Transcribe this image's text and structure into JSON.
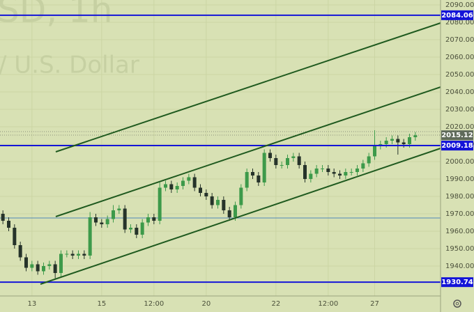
{
  "chart_data": {
    "type": "candlestick",
    "watermark": [
      "SD, 1h",
      "/ U.S. Dollar"
    ],
    "categories": [
      null,
      null,
      null,
      null,
      null,
      "13",
      null,
      null,
      null,
      null,
      null,
      null,
      null,
      null,
      null,
      null,
      null,
      "15",
      null,
      null,
      null,
      null,
      null,
      null,
      null,
      null,
      "12:00",
      null,
      null,
      null,
      null,
      null,
      null,
      null,
      null,
      "20",
      null,
      null,
      null,
      null,
      null,
      null,
      null,
      null,
      null,
      null,
      null,
      "22",
      null,
      null,
      null,
      null,
      null,
      null,
      null,
      null,
      "12:00",
      null,
      null,
      null,
      null,
      null,
      null,
      null,
      "27",
      null,
      null,
      null,
      null,
      null,
      null,
      null
    ],
    "open": [
      1970,
      1966,
      1962,
      1952,
      1945,
      1939,
      1941,
      1937,
      1940,
      1941,
      1936,
      1947,
      1947,
      1946,
      1947,
      1946,
      1968,
      1965,
      1964,
      1967,
      1972,
      1973,
      1961,
      1962,
      1958,
      1965,
      1968,
      1966,
      1985,
      1987,
      1984,
      1986,
      1989,
      1991,
      1985,
      1982,
      1980,
      1975,
      1978,
      1972,
      1968,
      1975,
      1985,
      1994,
      1992,
      1988,
      2005,
      2002,
      1998,
      1998,
      2002,
      2003,
      1998,
      1990,
      1993,
      1996,
      1996,
      1994,
      1993,
      1992,
      1994,
      1994,
      1996,
      1999,
      2003,
      2009,
      2010,
      2012,
      2013,
      2011,
      2010,
      2014
    ],
    "high": [
      1972,
      1968,
      1964,
      1954,
      1947,
      1943,
      1943,
      1942,
      1943,
      1943,
      1949,
      1949,
      1949,
      1949,
      1949,
      1971,
      1970,
      1967,
      1969,
      1975,
      1975,
      1975,
      1964,
      1964,
      1967,
      1970,
      1970,
      1988,
      1989,
      1989,
      1988,
      1991,
      1993,
      1993,
      1987,
      1984,
      1982,
      1980,
      1980,
      1974,
      1977,
      1987,
      1996,
      1996,
      1994,
      2007,
      2007,
      2004,
      2000,
      2004,
      2005,
      2005,
      2000,
      1995,
      1998,
      1998,
      1998,
      1996,
      1995,
      1996,
      1996,
      1998,
      2001,
      2005,
      2018,
      2012,
      2014,
      2015,
      2015,
      2013,
      2016,
      2017
    ],
    "low": [
      1964,
      1960,
      1950,
      1943,
      1937,
      1937,
      1935,
      1935,
      1938,
      1933,
      1934,
      1945,
      1944,
      1944,
      1944,
      1944,
      1963,
      1962,
      1962,
      1965,
      1970,
      1959,
      1959,
      1956,
      1956,
      1963,
      1964,
      1964,
      1983,
      1982,
      1982,
      1984,
      1987,
      1983,
      1980,
      1978,
      1973,
      1973,
      1970,
      1966,
      1966,
      1973,
      1983,
      1990,
      1986,
      1986,
      2000,
      1996,
      1996,
      1996,
      2000,
      1996,
      1988,
      1988,
      1991,
      1994,
      1992,
      1991,
      1990,
      1990,
      1992,
      1992,
      1994,
      1997,
      2001,
      2007,
      2008,
      2010,
      2004,
      2008,
      2008,
      2012
    ],
    "close": [
      1966,
      1962,
      1952,
      1945,
      1939,
      1941,
      1937,
      1940,
      1941,
      1936,
      1947,
      1947,
      1946,
      1947,
      1946,
      1968,
      1965,
      1964,
      1967,
      1972,
      1973,
      1961,
      1962,
      1958,
      1965,
      1968,
      1966,
      1985,
      1987,
      1984,
      1986,
      1989,
      1991,
      1985,
      1982,
      1980,
      1975,
      1978,
      1972,
      1968,
      1975,
      1985,
      1994,
      1992,
      1988,
      2005,
      2002,
      1998,
      1998,
      2002,
      2003,
      1998,
      1990,
      1993,
      1996,
      1996,
      1994,
      1993,
      1992,
      1994,
      1994,
      1996,
      1999,
      2003,
      2009,
      2010,
      2012,
      2013,
      2011,
      2010,
      2014,
      2015.12
    ],
    "up_color": "#3d9a4a",
    "down_color": "#26332a",
    "levels": {
      "values": [
        2084.06,
        2009.18,
        1930.74
      ],
      "color": "#1414d8"
    },
    "ylim": [
      1922.8,
      2092.8
    ],
    "yticks": [
      {
        "value": 1940,
        "label": "1940.00"
      },
      {
        "value": 1950,
        "label": "1950.00"
      },
      {
        "value": 1960,
        "label": "1960.00"
      },
      {
        "value": 1970,
        "label": "1970.00"
      },
      {
        "value": 1980,
        "label": "1980.00"
      },
      {
        "value": 1990,
        "label": "1990.00"
      },
      {
        "value": 2000,
        "label": "2000.00"
      },
      {
        "value": 2010,
        "label": "2010.00"
      },
      {
        "value": 2020,
        "label": "2020.00"
      },
      {
        "value": 2030,
        "label": "2030.00"
      },
      {
        "value": 2040,
        "label": "2040.00"
      },
      {
        "value": 2050,
        "label": "2050.00"
      },
      {
        "value": 2060,
        "label": "2060.00"
      },
      {
        "value": 2070,
        "label": "2070.00"
      },
      {
        "value": 2080,
        "label": "2080.00"
      },
      {
        "value": 2090,
        "label": "2090.00"
      }
    ],
    "grid": true
  }
}
